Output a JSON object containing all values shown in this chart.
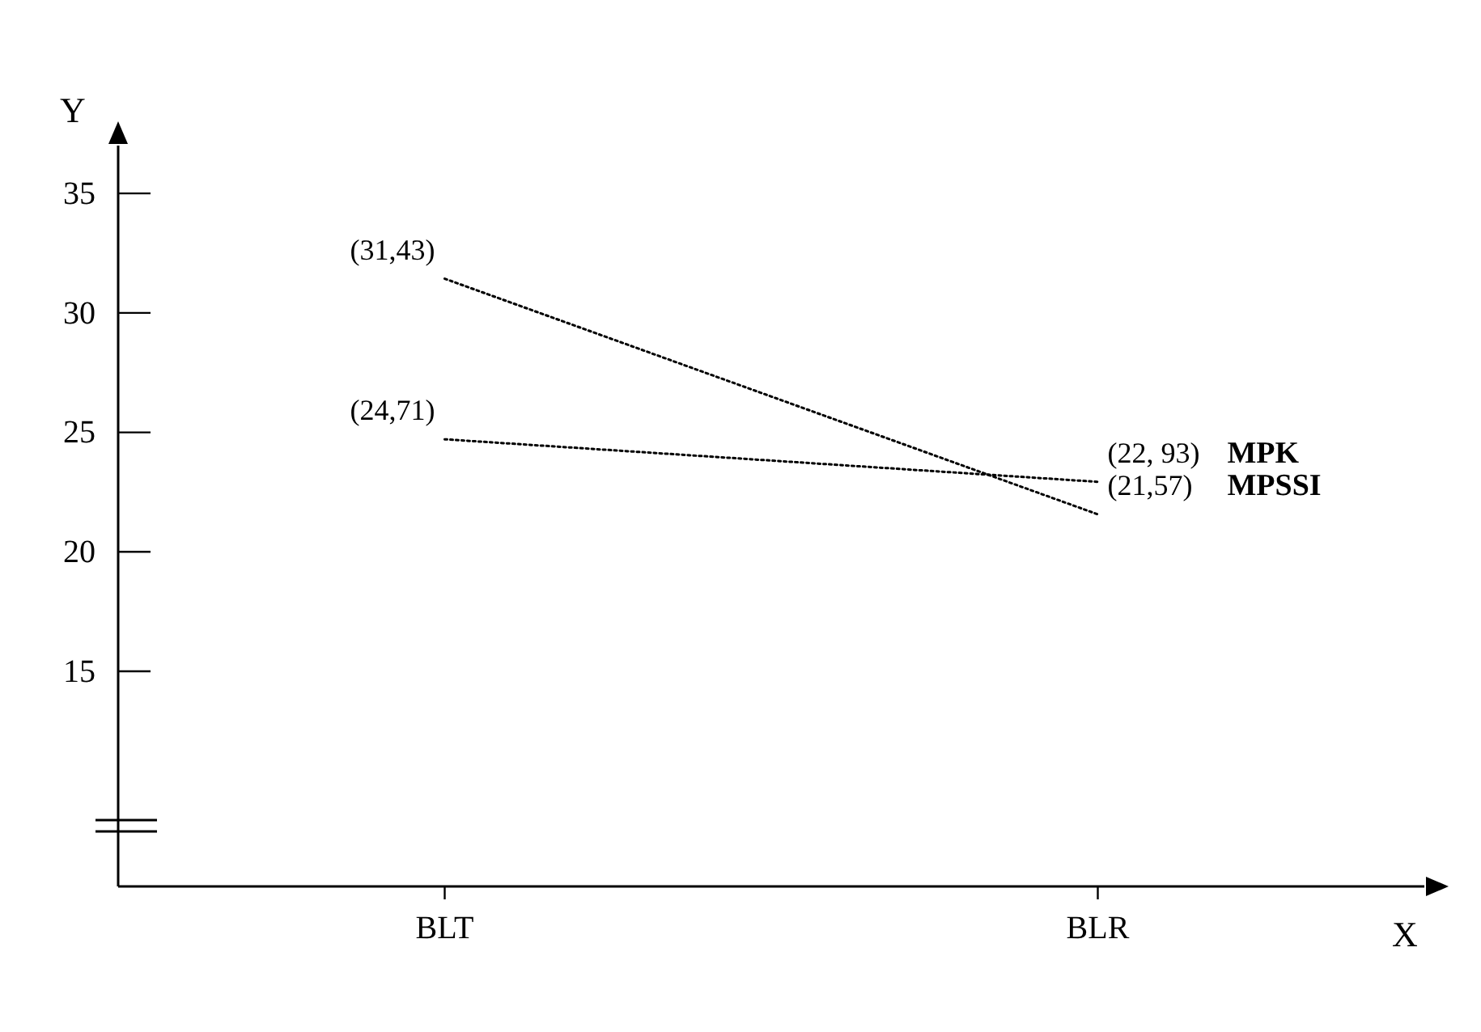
{
  "chart_data": {
    "type": "line",
    "xlabel": "X",
    "ylabel": "Y",
    "categories": [
      "BLT",
      "BLR"
    ],
    "series": [
      {
        "name": "MPK",
        "color": "#000000",
        "values": [
          24.71,
          22.93
        ],
        "value_labels": [
          "(24,71)",
          "(22, 93)"
        ]
      },
      {
        "name": "MPSSI",
        "color": "#000000",
        "values": [
          31.43,
          21.57
        ],
        "value_labels": [
          "(31,43)",
          "(21,57)"
        ]
      }
    ],
    "ylim": [
      6,
      37
    ],
    "yticks": [
      15,
      20,
      25,
      30,
      35
    ],
    "grid": false,
    "legend": false,
    "marker": "none",
    "line_style": "dotted"
  }
}
